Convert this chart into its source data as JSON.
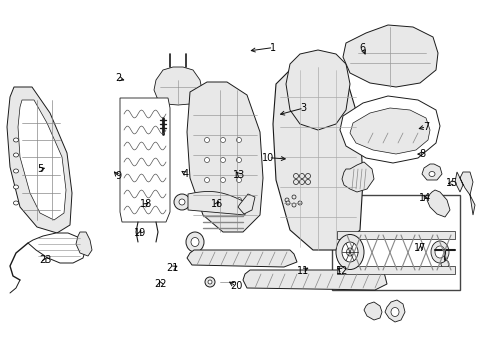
{
  "bg": "#ffffff",
  "lc": "#1a1a1a",
  "tc": "#000000",
  "fw": 4.9,
  "fh": 3.6,
  "dpi": 100,
  "label_data": {
    "1": [
      0.558,
      0.868,
      0.505,
      0.858
    ],
    "2": [
      0.242,
      0.782,
      0.26,
      0.775
    ],
    "3": [
      0.62,
      0.7,
      0.565,
      0.68
    ],
    "4": [
      0.378,
      0.518,
      0.365,
      0.53
    ],
    "5": [
      0.082,
      0.53,
      0.098,
      0.535
    ],
    "6": [
      0.74,
      0.868,
      0.748,
      0.84
    ],
    "7": [
      0.87,
      0.648,
      0.848,
      0.64
    ],
    "8": [
      0.862,
      0.572,
      0.845,
      0.572
    ],
    "9": [
      0.242,
      0.51,
      0.228,
      0.53
    ],
    "10": [
      0.548,
      0.562,
      0.59,
      0.558
    ],
    "11": [
      0.618,
      0.248,
      0.635,
      0.26
    ],
    "12": [
      0.698,
      0.248,
      0.682,
      0.26
    ],
    "13": [
      0.488,
      0.515,
      0.478,
      0.528
    ],
    "14": [
      0.868,
      0.45,
      0.862,
      0.465
    ],
    "15": [
      0.922,
      0.492,
      0.908,
      0.488
    ],
    "16": [
      0.442,
      0.432,
      0.45,
      0.448
    ],
    "17": [
      0.858,
      0.312,
      0.858,
      0.328
    ],
    "18": [
      0.298,
      0.432,
      0.308,
      0.442
    ],
    "19": [
      0.285,
      0.352,
      0.29,
      0.368
    ],
    "20": [
      0.482,
      0.205,
      0.462,
      0.222
    ],
    "21": [
      0.352,
      0.255,
      0.368,
      0.265
    ],
    "22": [
      0.328,
      0.212,
      0.322,
      0.228
    ],
    "23": [
      0.092,
      0.278,
      0.098,
      0.292
    ]
  }
}
